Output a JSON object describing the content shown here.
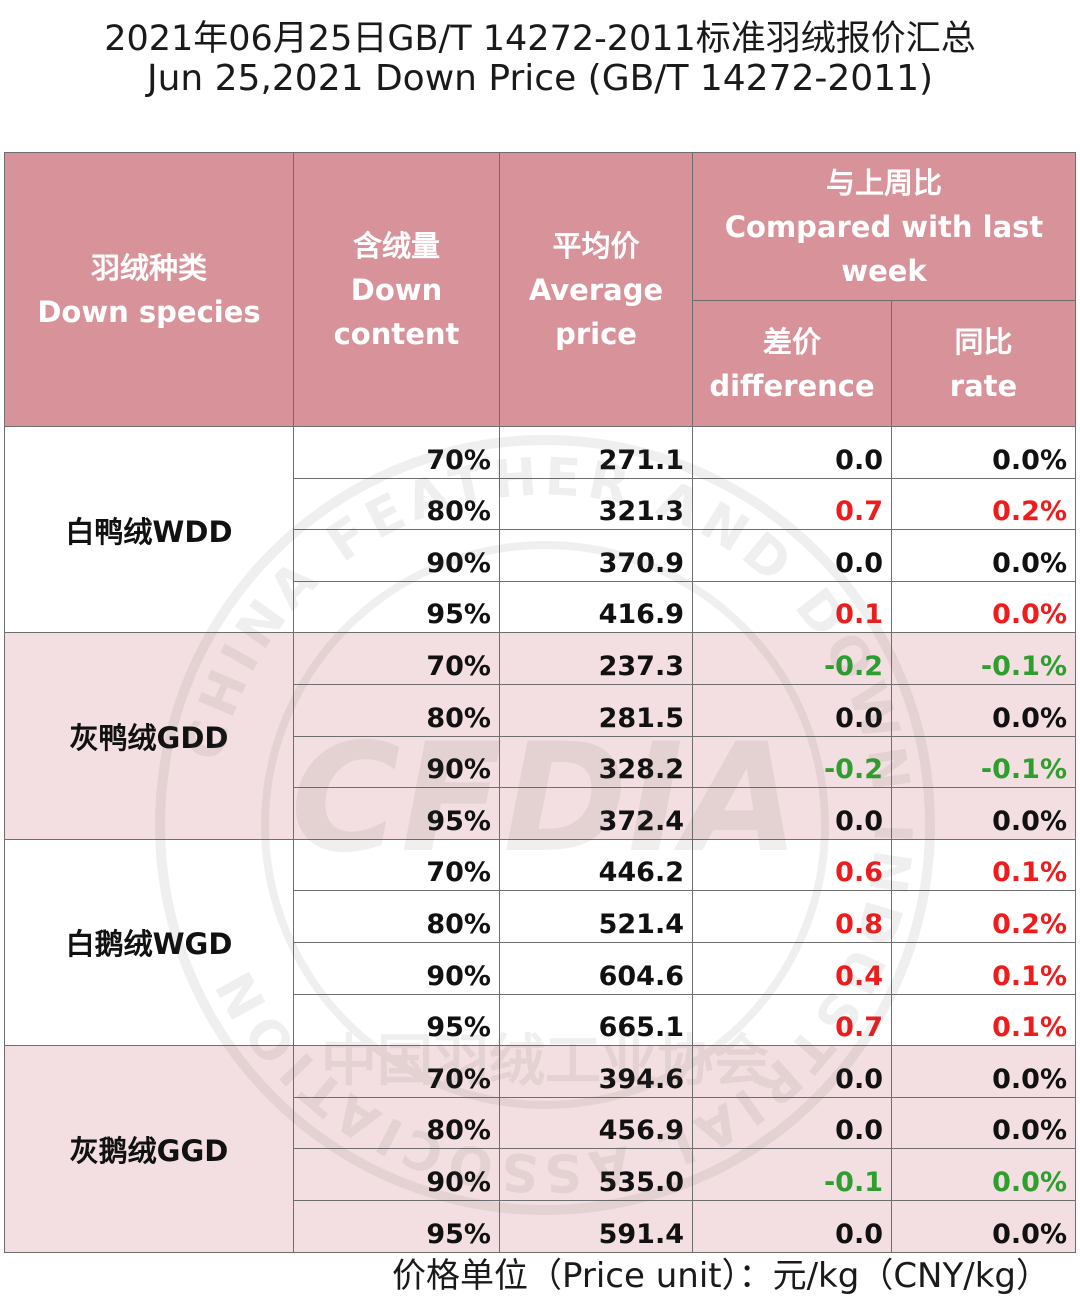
{
  "title_zh": "2021年06月25日GB/T 14272-2011标准羽绒报价汇总",
  "title_en": "Jun 25,2021 Down Price (GB/T 14272-2011)",
  "headers": {
    "species": {
      "zh": "羽绒种类",
      "en": "Down species"
    },
    "content": {
      "zh": "含绒量",
      "en1": "Down",
      "en2": "content"
    },
    "avg": {
      "zh": "平均价",
      "en1": "Average",
      "en2": "price"
    },
    "compare": {
      "zh": "与上周比",
      "en1": "Compared with last",
      "en2": "week"
    },
    "diff": {
      "zh": "差价",
      "en": "difference"
    },
    "rate": {
      "zh": "同比",
      "en": "rate"
    }
  },
  "groups": [
    {
      "name": "白鸭绒WDD",
      "rows": [
        {
          "content": "70%",
          "price": "271.1",
          "diff": "0.0",
          "rate": "0.0%",
          "trend": "flat"
        },
        {
          "content": "80%",
          "price": "321.3",
          "diff": "0.7",
          "rate": "0.2%",
          "trend": "up"
        },
        {
          "content": "90%",
          "price": "370.9",
          "diff": "0.0",
          "rate": "0.0%",
          "trend": "flat"
        },
        {
          "content": "95%",
          "price": "416.9",
          "diff": "0.1",
          "rate": "0.0%",
          "trend": "up"
        }
      ]
    },
    {
      "name": "灰鸭绒GDD",
      "rows": [
        {
          "content": "70%",
          "price": "237.3",
          "diff": "-0.2",
          "rate": "-0.1%",
          "trend": "down"
        },
        {
          "content": "80%",
          "price": "281.5",
          "diff": "0.0",
          "rate": "0.0%",
          "trend": "flat"
        },
        {
          "content": "90%",
          "price": "328.2",
          "diff": "-0.2",
          "rate": "-0.1%",
          "trend": "down"
        },
        {
          "content": "95%",
          "price": "372.4",
          "diff": "0.0",
          "rate": "0.0%",
          "trend": "flat"
        }
      ]
    },
    {
      "name": "白鹅绒WGD",
      "rows": [
        {
          "content": "70%",
          "price": "446.2",
          "diff": "0.6",
          "rate": "0.1%",
          "trend": "up"
        },
        {
          "content": "80%",
          "price": "521.4",
          "diff": "0.8",
          "rate": "0.2%",
          "trend": "up"
        },
        {
          "content": "90%",
          "price": "604.6",
          "diff": "0.4",
          "rate": "0.1%",
          "trend": "up"
        },
        {
          "content": "95%",
          "price": "665.1",
          "diff": "0.7",
          "rate": "0.1%",
          "trend": "up"
        }
      ]
    },
    {
      "name": "灰鹅绒GGD",
      "rows": [
        {
          "content": "70%",
          "price": "394.6",
          "diff": "0.0",
          "rate": "0.0%",
          "trend": "flat"
        },
        {
          "content": "80%",
          "price": "456.9",
          "diff": "0.0",
          "rate": "0.0%",
          "trend": "flat"
        },
        {
          "content": "90%",
          "price": "535.0",
          "diff": "-0.1",
          "rate": "0.0%",
          "trend": "down"
        },
        {
          "content": "95%",
          "price": "591.4",
          "diff": "0.0",
          "rate": "0.0%",
          "trend": "flat"
        }
      ]
    }
  ],
  "footer": "价格单位（Price unit）：元/kg（CNY/kg）",
  "watermark": {
    "outer_text": "CHINA FEATHER AND DOWN INDUSTRIAL ASSOCIATION",
    "inner_text": "中国羽绒工业协会",
    "logo": "CFDIA"
  },
  "colors": {
    "header": "#d8939a",
    "pink_band": "#f0d6d8",
    "up": "#ee1c1c",
    "down": "#2e9e2e"
  }
}
